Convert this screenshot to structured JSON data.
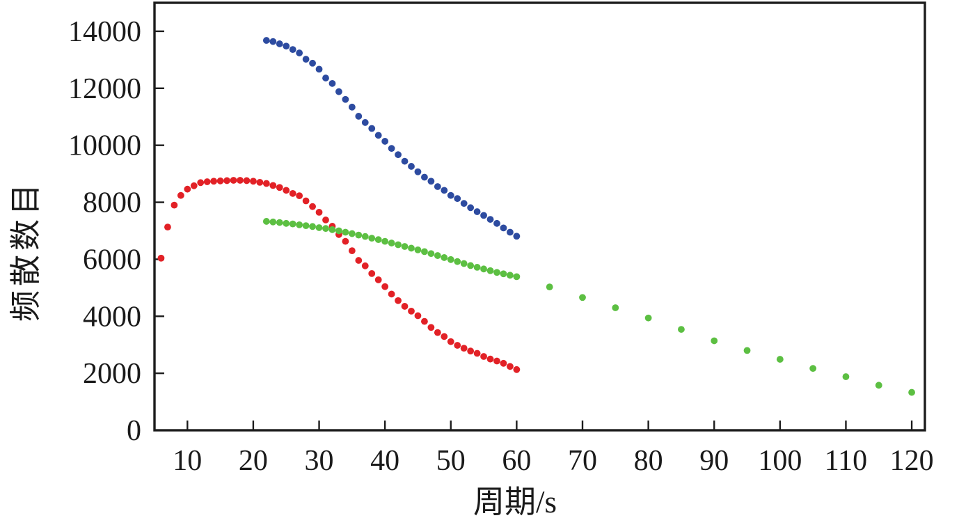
{
  "figure": {
    "background": "#ffffff",
    "frame_color": "#1c1c1c"
  },
  "chart_data": {
    "type": "scatter",
    "title": "",
    "xlabel": "周期/s",
    "ylabel": "频散数目",
    "xlim": [
      5,
      122
    ],
    "ylim": [
      0,
      15000
    ],
    "x_ticks": [
      10,
      20,
      30,
      40,
      50,
      60,
      70,
      80,
      90,
      100,
      110,
      120
    ],
    "y_ticks": [
      0,
      2000,
      4000,
      6000,
      8000,
      10000,
      12000,
      14000
    ],
    "grid": false,
    "legend": null,
    "series": [
      {
        "name": "red-series",
        "color": "#e22126",
        "marker": "circle",
        "points": [
          [
            6,
            6040
          ],
          [
            7,
            7130
          ],
          [
            8,
            7900
          ],
          [
            9,
            8240
          ],
          [
            10,
            8460
          ],
          [
            11,
            8580
          ],
          [
            12,
            8690
          ],
          [
            13,
            8720
          ],
          [
            14,
            8740
          ],
          [
            15,
            8750
          ],
          [
            16,
            8760
          ],
          [
            17,
            8770
          ],
          [
            18,
            8770
          ],
          [
            19,
            8760
          ],
          [
            20,
            8740
          ],
          [
            21,
            8700
          ],
          [
            22,
            8660
          ],
          [
            23,
            8590
          ],
          [
            24,
            8520
          ],
          [
            25,
            8420
          ],
          [
            26,
            8310
          ],
          [
            27,
            8230
          ],
          [
            28,
            8050
          ],
          [
            29,
            7850
          ],
          [
            30,
            7650
          ],
          [
            31,
            7380
          ],
          [
            32,
            7160
          ],
          [
            33,
            6870
          ],
          [
            34,
            6630
          ],
          [
            35,
            6300
          ],
          [
            36,
            5960
          ],
          [
            37,
            5770
          ],
          [
            38,
            5500
          ],
          [
            39,
            5280
          ],
          [
            40,
            5040
          ],
          [
            41,
            4780
          ],
          [
            42,
            4550
          ],
          [
            43,
            4350
          ],
          [
            44,
            4180
          ],
          [
            45,
            4020
          ],
          [
            46,
            3820
          ],
          [
            47,
            3610
          ],
          [
            48,
            3430
          ],
          [
            49,
            3290
          ],
          [
            50,
            3110
          ],
          [
            51,
            2980
          ],
          [
            52,
            2880
          ],
          [
            53,
            2780
          ],
          [
            54,
            2700
          ],
          [
            55,
            2590
          ],
          [
            56,
            2500
          ],
          [
            57,
            2430
          ],
          [
            58,
            2350
          ],
          [
            59,
            2240
          ],
          [
            60,
            2130
          ]
        ]
      },
      {
        "name": "blue-series",
        "color": "#2d4ba0",
        "marker": "circle",
        "points": [
          [
            22,
            13680
          ],
          [
            23,
            13640
          ],
          [
            24,
            13560
          ],
          [
            25,
            13480
          ],
          [
            26,
            13360
          ],
          [
            27,
            13240
          ],
          [
            28,
            13020
          ],
          [
            29,
            12880
          ],
          [
            30,
            12670
          ],
          [
            31,
            12360
          ],
          [
            32,
            12170
          ],
          [
            33,
            11880
          ],
          [
            34,
            11610
          ],
          [
            35,
            11340
          ],
          [
            36,
            11020
          ],
          [
            37,
            10800
          ],
          [
            38,
            10590
          ],
          [
            39,
            10350
          ],
          [
            40,
            10140
          ],
          [
            41,
            9890
          ],
          [
            42,
            9670
          ],
          [
            43,
            9440
          ],
          [
            44,
            9260
          ],
          [
            45,
            9070
          ],
          [
            46,
            8880
          ],
          [
            47,
            8740
          ],
          [
            48,
            8550
          ],
          [
            49,
            8420
          ],
          [
            50,
            8240
          ],
          [
            51,
            8130
          ],
          [
            52,
            7960
          ],
          [
            53,
            7810
          ],
          [
            54,
            7670
          ],
          [
            55,
            7540
          ],
          [
            56,
            7400
          ],
          [
            57,
            7260
          ],
          [
            58,
            7100
          ],
          [
            59,
            6950
          ],
          [
            60,
            6810
          ]
        ]
      },
      {
        "name": "green-series",
        "color": "#5cbf42",
        "marker": "circle",
        "points": [
          [
            22,
            7330
          ],
          [
            23,
            7310
          ],
          [
            24,
            7290
          ],
          [
            25,
            7260
          ],
          [
            26,
            7240
          ],
          [
            27,
            7210
          ],
          [
            28,
            7180
          ],
          [
            29,
            7150
          ],
          [
            30,
            7110
          ],
          [
            31,
            7080
          ],
          [
            32,
            7040
          ],
          [
            33,
            7000
          ],
          [
            34,
            6950
          ],
          [
            35,
            6900
          ],
          [
            36,
            6850
          ],
          [
            37,
            6800
          ],
          [
            38,
            6740
          ],
          [
            39,
            6690
          ],
          [
            40,
            6630
          ],
          [
            41,
            6570
          ],
          [
            42,
            6510
          ],
          [
            43,
            6450
          ],
          [
            44,
            6390
          ],
          [
            45,
            6330
          ],
          [
            46,
            6270
          ],
          [
            47,
            6200
          ],
          [
            48,
            6130
          ],
          [
            49,
            6060
          ],
          [
            50,
            5990
          ],
          [
            51,
            5920
          ],
          [
            52,
            5850
          ],
          [
            53,
            5780
          ],
          [
            54,
            5720
          ],
          [
            55,
            5660
          ],
          [
            56,
            5600
          ],
          [
            57,
            5540
          ],
          [
            58,
            5490
          ],
          [
            59,
            5440
          ],
          [
            60,
            5390
          ],
          [
            65,
            5030
          ],
          [
            70,
            4660
          ],
          [
            75,
            4300
          ],
          [
            80,
            3940
          ],
          [
            85,
            3540
          ],
          [
            90,
            3140
          ],
          [
            95,
            2800
          ],
          [
            100,
            2490
          ],
          [
            105,
            2170
          ],
          [
            110,
            1880
          ],
          [
            115,
            1580
          ],
          [
            120,
            1330
          ]
        ]
      }
    ]
  }
}
